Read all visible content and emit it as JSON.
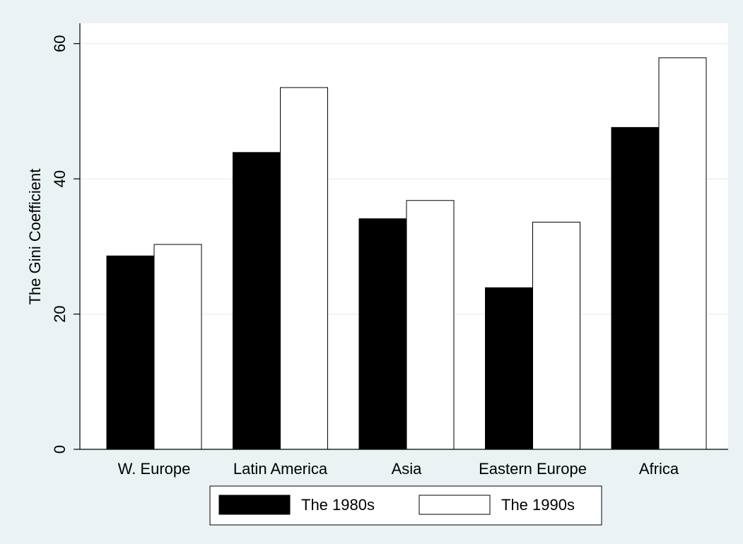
{
  "chart_data": {
    "type": "bar",
    "title": "",
    "xlabel": "",
    "ylabel": "The Gini Coefficient",
    "categories": [
      "W. Europe",
      "Latin America",
      "Asia",
      "Eastern Europe",
      "Africa"
    ],
    "series": [
      {
        "name": "The 1980s",
        "values": [
          28.6,
          43.9,
          34.1,
          23.9,
          47.6
        ],
        "color": "#000000"
      },
      {
        "name": "The 1990s",
        "values": [
          30.3,
          53.5,
          36.8,
          33.6,
          57.9
        ],
        "color": "#ffffff"
      }
    ],
    "yticks": [
      0,
      20,
      40,
      60
    ],
    "ylim": [
      0,
      63
    ],
    "grid": true,
    "legend_position": "bottom",
    "colors": {
      "background": "#eaf2f3",
      "plot_background": "#ffffff",
      "gridline": "#eaf2f3",
      "bar_stroke": "#000000"
    }
  }
}
